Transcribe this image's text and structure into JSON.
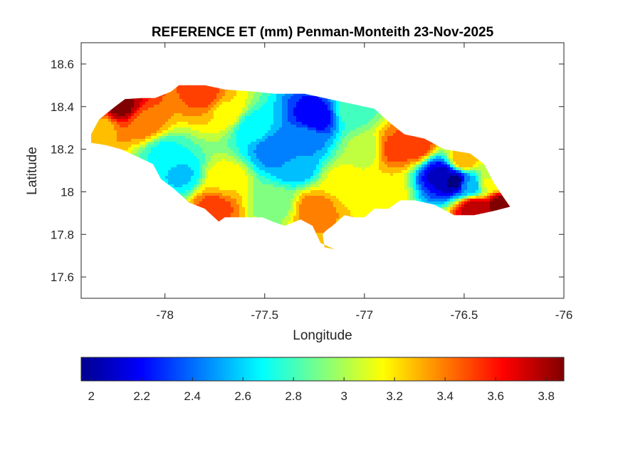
{
  "chart_data": {
    "type": "heatmap",
    "title": "REFERENCE ET (mm) Penman-Monteith 23-Nov-2025",
    "xlabel": "Longitude",
    "ylabel": "Latitude",
    "xlim": [
      -78.42,
      -76.0
    ],
    "ylim": [
      17.5,
      18.7
    ],
    "x_ticks": [
      -78,
      -77.5,
      -77,
      -76.5,
      -76
    ],
    "y_ticks": [
      17.6,
      17.8,
      18,
      18.2,
      18.4,
      18.6
    ],
    "x_tick_labels": [
      "-78",
      "-77.5",
      "-77",
      "-76.5",
      "-76"
    ],
    "y_tick_labels": [
      "17.6",
      "17.8",
      "18",
      "18.2",
      "18.4",
      "18.6"
    ],
    "grid": false,
    "colorbar": {
      "placement": "bottom",
      "colormap": "jet",
      "range": [
        1.96,
        3.87
      ],
      "ticks": [
        2,
        2.2,
        2.4,
        2.6,
        2.8,
        3,
        3.2,
        3.4,
        3.6,
        3.8
      ],
      "tick_labels": [
        "2",
        "2.2",
        "2.4",
        "2.6",
        "2.8",
        "3",
        "3.2",
        "3.4",
        "3.6",
        "3.8"
      ]
    },
    "region_outline": [
      [
        -78.37,
        18.27
      ],
      [
        -78.33,
        18.34
      ],
      [
        -78.25,
        18.4
      ],
      [
        -78.2,
        18.435
      ],
      [
        -78.12,
        18.44
      ],
      [
        -78.05,
        18.44
      ],
      [
        -77.97,
        18.47
      ],
      [
        -77.93,
        18.5
      ],
      [
        -77.8,
        18.5
      ],
      [
        -77.7,
        18.48
      ],
      [
        -77.55,
        18.47
      ],
      [
        -77.45,
        18.46
      ],
      [
        -77.3,
        18.46
      ],
      [
        -77.2,
        18.44
      ],
      [
        -77.05,
        18.41
      ],
      [
        -76.95,
        18.39
      ],
      [
        -76.88,
        18.33
      ],
      [
        -76.8,
        18.27
      ],
      [
        -76.7,
        18.25
      ],
      [
        -76.6,
        18.2
      ],
      [
        -76.47,
        18.18
      ],
      [
        -76.4,
        18.13
      ],
      [
        -76.35,
        18.04
      ],
      [
        -76.3,
        17.97
      ],
      [
        -76.27,
        17.93
      ],
      [
        -76.35,
        17.91
      ],
      [
        -76.45,
        17.89
      ],
      [
        -76.55,
        17.89
      ],
      [
        -76.65,
        17.94
      ],
      [
        -76.75,
        17.96
      ],
      [
        -76.82,
        17.96
      ],
      [
        -76.88,
        17.92
      ],
      [
        -76.95,
        17.92
      ],
      [
        -77.0,
        17.88
      ],
      [
        -77.05,
        17.88
      ],
      [
        -77.1,
        17.89
      ],
      [
        -77.16,
        17.84
      ],
      [
        -77.19,
        17.82
      ],
      [
        -77.21,
        17.8
      ],
      [
        -77.2,
        17.74
      ],
      [
        -77.15,
        17.73
      ],
      [
        -77.22,
        17.76
      ],
      [
        -77.26,
        17.84
      ],
      [
        -77.32,
        17.87
      ],
      [
        -77.4,
        17.84
      ],
      [
        -77.46,
        17.86
      ],
      [
        -77.51,
        17.88
      ],
      [
        -77.7,
        17.88
      ],
      [
        -77.73,
        17.86
      ],
      [
        -77.8,
        17.92
      ],
      [
        -77.88,
        17.95
      ],
      [
        -77.95,
        18.01
      ],
      [
        -78.02,
        18.06
      ],
      [
        -78.06,
        18.13
      ],
      [
        -78.15,
        18.17
      ],
      [
        -78.22,
        18.2
      ],
      [
        -78.3,
        18.22
      ],
      [
        -78.37,
        18.23
      ]
    ],
    "field_centers": [
      {
        "lon": -78.22,
        "lat": 18.4,
        "value": 3.85
      },
      {
        "lon": -78.32,
        "lat": 18.3,
        "value": 3.3
      },
      {
        "lon": -78.1,
        "lat": 18.32,
        "value": 3.4
      },
      {
        "lon": -78.0,
        "lat": 18.18,
        "value": 2.7
      },
      {
        "lon": -77.92,
        "lat": 18.08,
        "value": 2.6
      },
      {
        "lon": -77.8,
        "lat": 18.45,
        "value": 3.5
      },
      {
        "lon": -77.7,
        "lat": 18.38,
        "value": 3.2
      },
      {
        "lon": -77.75,
        "lat": 17.93,
        "value": 3.5
      },
      {
        "lon": -77.7,
        "lat": 18.05,
        "value": 3.2
      },
      {
        "lon": -77.55,
        "lat": 18.3,
        "value": 2.65
      },
      {
        "lon": -77.45,
        "lat": 18.2,
        "value": 2.4
      },
      {
        "lon": -77.35,
        "lat": 18.12,
        "value": 2.5
      },
      {
        "lon": -77.25,
        "lat": 18.35,
        "value": 2.15
      },
      {
        "lon": -77.3,
        "lat": 18.25,
        "value": 2.45
      },
      {
        "lon": -77.45,
        "lat": 17.95,
        "value": 2.9
      },
      {
        "lon": -77.25,
        "lat": 17.92,
        "value": 3.4
      },
      {
        "lon": -77.1,
        "lat": 18.05,
        "value": 3.15
      },
      {
        "lon": -77.05,
        "lat": 18.38,
        "value": 2.8
      },
      {
        "lon": -77.0,
        "lat": 18.2,
        "value": 3.0
      },
      {
        "lon": -76.85,
        "lat": 18.2,
        "value": 3.5
      },
      {
        "lon": -76.9,
        "lat": 18.0,
        "value": 3.2
      },
      {
        "lon": -76.75,
        "lat": 18.22,
        "value": 3.55
      },
      {
        "lon": -76.62,
        "lat": 18.08,
        "value": 2.1
      },
      {
        "lon": -76.55,
        "lat": 18.05,
        "value": 1.97
      },
      {
        "lon": -76.47,
        "lat": 18.03,
        "value": 2.5
      },
      {
        "lon": -76.5,
        "lat": 18.15,
        "value": 3.3
      },
      {
        "lon": -76.45,
        "lat": 17.92,
        "value": 3.8
      },
      {
        "lon": -76.32,
        "lat": 17.94,
        "value": 3.85
      },
      {
        "lon": -76.38,
        "lat": 18.04,
        "value": 3.1
      }
    ]
  },
  "colors": {
    "axis": "#262626",
    "background": "#ffffff"
  }
}
